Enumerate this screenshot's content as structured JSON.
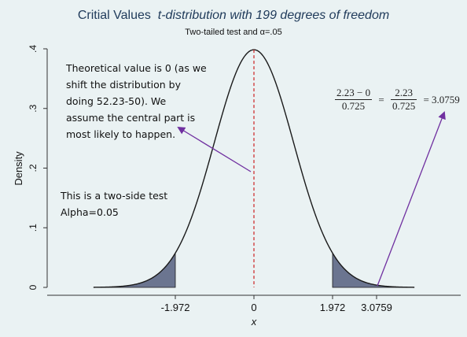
{
  "chart_data": {
    "type": "line",
    "title": "Critial Values",
    "title_italic": "t-distribution with 199 degrees of freedom",
    "subtitle": "Two-tailed test and α=.05",
    "xlabel": "x",
    "ylabel": "Density",
    "xlim": [
      -4.2,
      4.2
    ],
    "ylim": [
      0,
      0.4
    ],
    "y_ticks": [
      {
        "value": 0,
        "label": "0"
      },
      {
        "value": 0.1,
        "label": ".1"
      },
      {
        "value": 0.2,
        "label": ".2"
      },
      {
        "value": 0.3,
        "label": ".3"
      },
      {
        "value": 0.4,
        "label": ".4"
      }
    ],
    "x_ticks": [
      {
        "value": -1.972,
        "label": "-1.972"
      },
      {
        "value": 0,
        "label": "0"
      },
      {
        "value": 1.972,
        "label": "1.972"
      },
      {
        "value": 3.0759,
        "label": "3.0759"
      }
    ],
    "degrees_of_freedom": 199,
    "critical_values": [
      -1.972,
      1.972
    ],
    "test_statistic": 3.0759,
    "reference_line_x": 0,
    "colors": {
      "curve": "#1a1a1a",
      "tail_fill": "#6b7590",
      "reference_line": "#cc2222",
      "arrow": "#7030a0",
      "background": "#eaf2f3"
    }
  },
  "annotations": {
    "note_center": [
      "Theoretical value is 0 (as we",
      "shift the distribution by",
      "doing 52.23-50). We",
      "assume the central part is",
      "most likely to happen."
    ],
    "note_test": [
      "This is a two-side test",
      "Alpha=0.05"
    ],
    "formula": {
      "num1": "2.23 − 0",
      "den1": "0.725",
      "eq1": "=",
      "num2": "2.23",
      "den2": "0.725",
      "result": "= 3.0759"
    }
  }
}
